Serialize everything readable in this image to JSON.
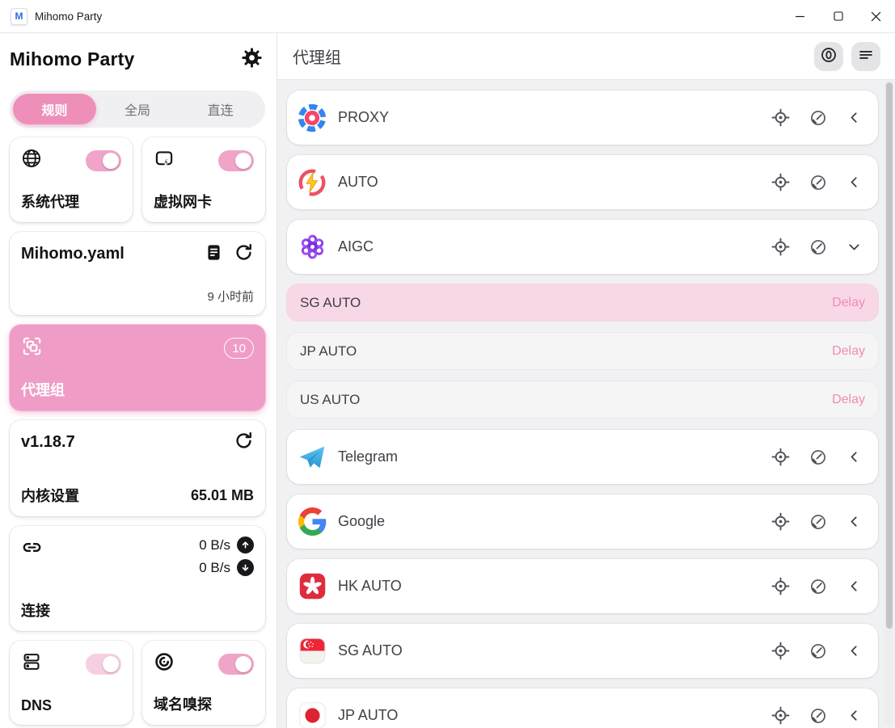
{
  "window": {
    "title": "Mihomo Party"
  },
  "titlebar": {
    "controls": {
      "minimize": "minimize",
      "maximize": "maximize",
      "close": "close"
    }
  },
  "colors": {
    "primary_pink": "#ee8fba",
    "primary_card_pink": "#ef9dc6",
    "toggle_pink": "#f0a4c8",
    "toggle_pink_light": "#f6cfe2",
    "selected_node_bg": "#f8d8e7",
    "delay_text": "#f18bb6",
    "content_bg": "#f1f1f3"
  },
  "sidebar": {
    "app_title": "Mihomo Party",
    "tabs": [
      {
        "label": "规则",
        "active": true
      },
      {
        "label": "全局",
        "active": false
      },
      {
        "label": "直连",
        "active": false
      }
    ],
    "system_proxy": {
      "label": "系统代理",
      "enabled": true
    },
    "tun": {
      "label": "虚拟网卡",
      "enabled": true
    },
    "profile": {
      "name": "Mihomo.yaml",
      "updated": "9 小时前"
    },
    "proxy_groups_card": {
      "label": "代理组",
      "badge": "10"
    },
    "core": {
      "version": "v1.18.7",
      "label": "内核设置",
      "memory": "65.01 MB"
    },
    "connections": {
      "label": "连接",
      "upload": "0 B/s",
      "download": "0 B/s"
    },
    "dns": {
      "label": "DNS",
      "enabled": true
    },
    "sniff": {
      "label": "域名嗅探",
      "enabled": true
    }
  },
  "main": {
    "title": "代理组",
    "groups": [
      {
        "name": "PROXY",
        "icon": "proxy",
        "expanded": false
      },
      {
        "name": "AUTO",
        "icon": "auto",
        "expanded": false
      },
      {
        "name": "AIGC",
        "icon": "openai",
        "expanded": true,
        "nodes": [
          {
            "name": "SG AUTO",
            "delay_label": "Delay",
            "selected": true
          },
          {
            "name": "JP AUTO",
            "delay_label": "Delay",
            "selected": false
          },
          {
            "name": "US AUTO",
            "delay_label": "Delay",
            "selected": false
          }
        ]
      },
      {
        "name": "Telegram",
        "icon": "telegram",
        "expanded": false
      },
      {
        "name": "Google",
        "icon": "google",
        "expanded": false
      },
      {
        "name": "HK AUTO",
        "icon": "flag-hk",
        "expanded": false
      },
      {
        "name": "SG AUTO",
        "icon": "flag-sg",
        "expanded": false
      },
      {
        "name": "JP AUTO",
        "icon": "flag-jp",
        "expanded": false
      }
    ]
  }
}
